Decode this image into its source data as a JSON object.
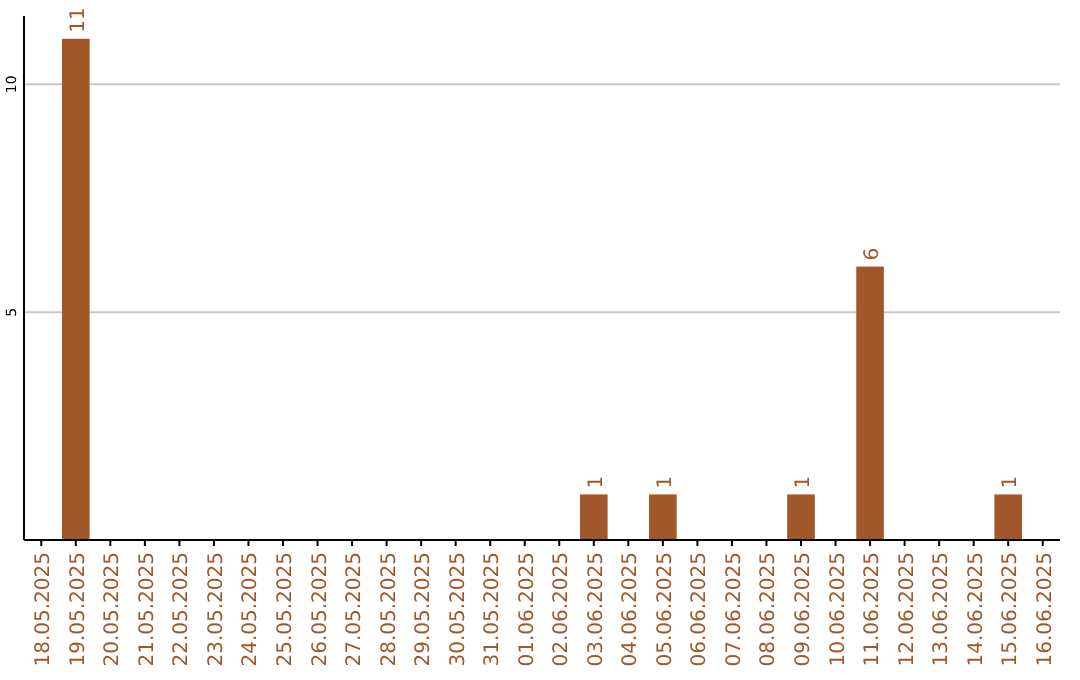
{
  "chart_data": {
    "type": "bar",
    "categories": [
      "18.05.2025",
      "19.05.2025",
      "20.05.2025",
      "21.05.2025",
      "22.05.2025",
      "23.05.2025",
      "24.05.2025",
      "25.05.2025",
      "26.05.2025",
      "27.05.2025",
      "28.05.2025",
      "29.05.2025",
      "30.05.2025",
      "31.05.2025",
      "01.06.2025",
      "02.06.2025",
      "03.06.2025",
      "04.06.2025",
      "05.06.2025",
      "06.06.2025",
      "07.06.2025",
      "08.06.2025",
      "09.06.2025",
      "10.06.2025",
      "11.06.2025",
      "12.06.2025",
      "13.06.2025",
      "14.06.2025",
      "15.06.2025",
      "16.06.2025"
    ],
    "values": [
      0,
      11,
      0,
      0,
      0,
      0,
      0,
      0,
      0,
      0,
      0,
      0,
      0,
      0,
      0,
      0,
      1,
      0,
      1,
      0,
      0,
      0,
      1,
      0,
      6,
      0,
      0,
      0,
      1,
      0
    ],
    "value_labels": [
      null,
      "11",
      null,
      null,
      null,
      null,
      null,
      null,
      null,
      null,
      null,
      null,
      null,
      null,
      null,
      null,
      "1",
      null,
      "1",
      null,
      null,
      null,
      "1",
      null,
      "6",
      null,
      null,
      null,
      "1",
      null
    ],
    "color": "#a0582a",
    "ylim": [
      0,
      11.5
    ],
    "yticks": [
      5,
      10
    ],
    "grid": "y"
  }
}
